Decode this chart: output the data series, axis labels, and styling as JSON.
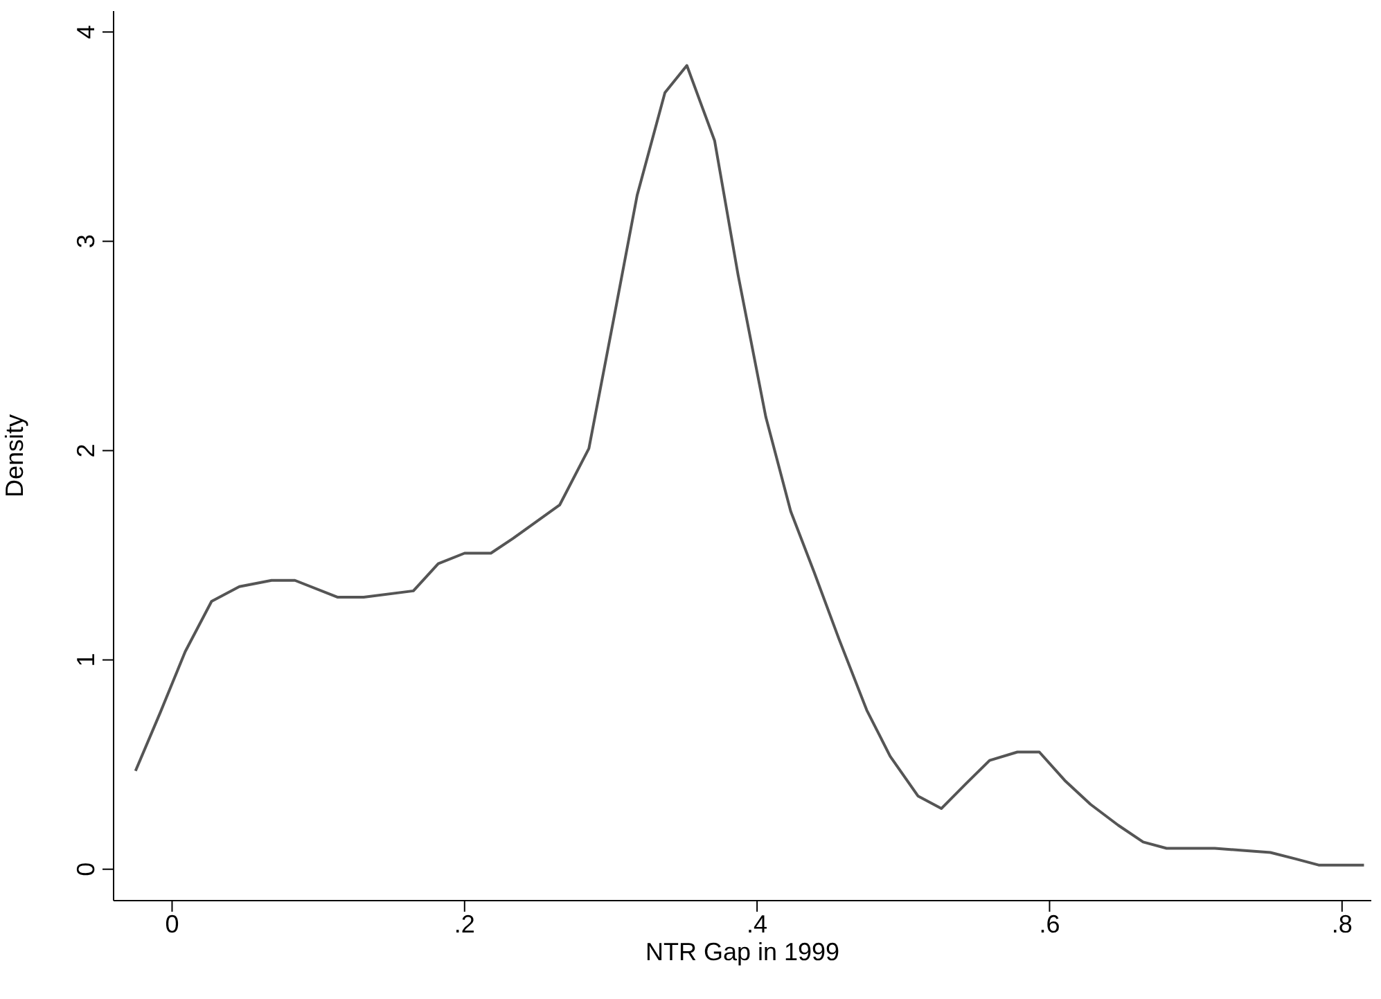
{
  "chart_data": {
    "type": "line",
    "xlabel": "NTR Gap in 1999",
    "ylabel": "Density",
    "color": "#555555",
    "x": [
      -0.025,
      -0.008,
      0.009,
      0.027,
      0.046,
      0.068,
      0.084,
      0.113,
      0.131,
      0.165,
      0.182,
      0.2,
      0.218,
      0.233,
      0.265,
      0.285,
      0.302,
      0.318,
      0.337,
      0.352,
      0.371,
      0.387,
      0.406,
      0.423,
      0.439,
      0.456,
      0.475,
      0.491,
      0.51,
      0.526,
      0.543,
      0.559,
      0.578,
      0.593,
      0.611,
      0.628,
      0.647,
      0.664,
      0.68,
      0.713,
      0.732,
      0.751,
      0.768,
      0.784,
      0.815
    ],
    "values": [
      0.47,
      0.75,
      1.04,
      1.28,
      1.35,
      1.38,
      1.38,
      1.3,
      1.3,
      1.33,
      1.46,
      1.51,
      1.51,
      1.58,
      1.74,
      2.01,
      2.63,
      3.22,
      3.71,
      3.84,
      3.48,
      2.84,
      2.16,
      1.71,
      1.42,
      1.1,
      0.76,
      0.54,
      0.35,
      0.29,
      0.41,
      0.52,
      0.56,
      0.56,
      0.42,
      0.31,
      0.21,
      0.13,
      0.1,
      0.1,
      0.09,
      0.08,
      0.05,
      0.02,
      0.02
    ],
    "xlim": [
      -0.04,
      0.82
    ],
    "ylim": [
      -0.15,
      4.1
    ],
    "xticks": [
      0,
      {
        "value": 0.2,
        "label": ".2"
      },
      {
        "value": 0.4,
        "label": ".4"
      },
      {
        "value": 0.6,
        "label": ".6"
      },
      {
        "value": 0.8,
        "label": ".8"
      }
    ],
    "yticks": [
      0,
      1,
      2,
      3,
      4
    ],
    "grid": false,
    "marker": "none",
    "line_style": "solid"
  }
}
